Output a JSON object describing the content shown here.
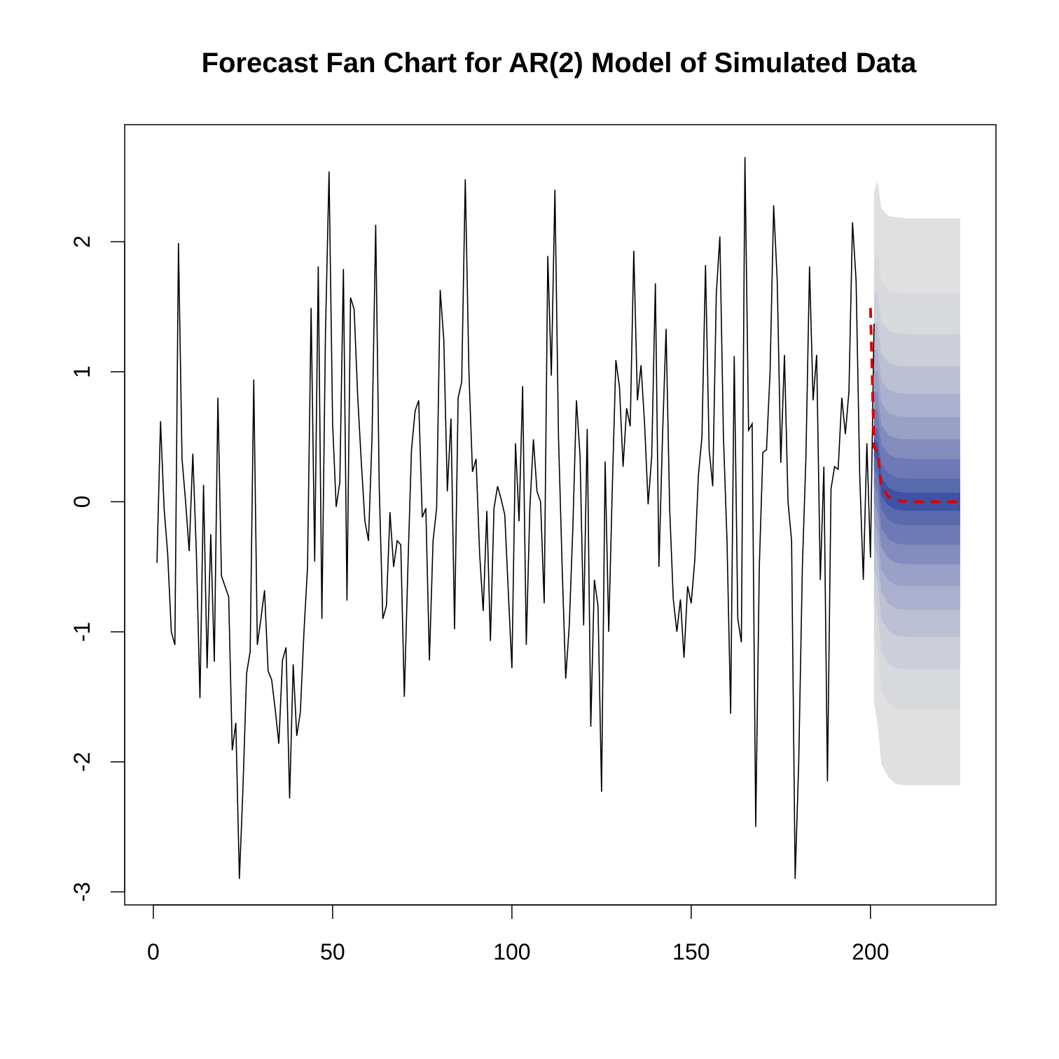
{
  "chart_data": {
    "type": "line",
    "title": "Forecast Fan Chart for AR(2) Model of Simulated Data",
    "xlabel": "",
    "ylabel": "",
    "xlim": [
      -8,
      235
    ],
    "ylim": [
      -3.1,
      2.9
    ],
    "x_ticks": [
      0,
      50,
      100,
      150,
      200
    ],
    "y_ticks": [
      -3,
      -2,
      -1,
      0,
      1,
      2
    ],
    "grid": false,
    "series": [
      {
        "role": "observed",
        "color": "#000000",
        "x_start": 1,
        "values": [
          -0.47,
          0.62,
          -0.05,
          -0.4,
          -1.0,
          -1.1,
          1.99,
          0.33,
          0.0,
          -0.38,
          0.37,
          -0.4,
          -1.51,
          0.13,
          -1.28,
          -0.25,
          -1.23,
          0.8,
          -0.57,
          -0.65,
          -0.73,
          -1.91,
          -1.7,
          -2.9,
          -2.2,
          -1.32,
          -1.15,
          0.94,
          -1.1,
          -0.9,
          -0.68,
          -1.3,
          -1.37,
          -1.6,
          -1.86,
          -1.22,
          -1.12,
          -2.28,
          -1.25,
          -1.8,
          -1.62,
          -1.0,
          -0.5,
          1.49,
          -0.46,
          1.81,
          -0.9,
          1.3,
          2.54,
          0.6,
          -0.04,
          0.15,
          1.79,
          -0.76,
          1.57,
          1.48,
          0.8,
          0.3,
          -0.15,
          -0.3,
          0.5,
          2.13,
          0.1,
          -0.9,
          -0.8,
          -0.08,
          -0.5,
          -0.3,
          -0.33,
          -1.5,
          -0.5,
          0.4,
          0.7,
          0.78,
          -0.12,
          -0.05,
          -1.22,
          -0.3,
          -0.05,
          1.63,
          1.25,
          0.08,
          0.64,
          -0.98,
          0.8,
          0.92,
          2.48,
          1.0,
          0.23,
          0.33,
          -0.4,
          -0.84,
          -0.07,
          -1.07,
          -0.05,
          0.12,
          0.02,
          -0.1,
          -0.7,
          -1.28,
          0.45,
          -0.15,
          0.89,
          -1.1,
          -0.05,
          0.48,
          0.08,
          0.0,
          -0.78,
          1.89,
          0.97,
          2.4,
          0.5,
          -0.5,
          -1.36,
          -0.95,
          -0.2,
          0.78,
          0.35,
          -0.95,
          0.56,
          -1.73,
          -0.6,
          -0.8,
          -2.23,
          0.31,
          -1.0,
          0.1,
          1.09,
          0.88,
          0.27,
          0.72,
          0.58,
          1.93,
          0.78,
          1.05,
          0.6,
          -0.02,
          0.35,
          1.68,
          -0.5,
          0.5,
          1.33,
          -0.05,
          -0.75,
          -1.0,
          -0.75,
          -1.2,
          -0.65,
          -0.78,
          -0.45,
          0.2,
          0.5,
          1.82,
          0.4,
          0.12,
          1.6,
          2.04,
          0.5,
          -0.3,
          -1.63,
          1.12,
          -0.9,
          -1.08,
          2.65,
          0.55,
          0.6,
          -2.5,
          -0.5,
          0.38,
          0.4,
          1.0,
          2.28,
          1.7,
          0.3,
          1.13,
          0.0,
          -0.3,
          -2.9,
          -2.0,
          -0.5,
          0.35,
          1.81,
          0.78,
          1.13,
          -0.6,
          0.27,
          -2.15,
          0.1,
          0.27,
          0.25,
          0.8,
          0.52,
          0.85,
          2.15,
          1.7,
          0.2,
          -0.6,
          0.45,
          -0.43,
          1.37
        ]
      },
      {
        "role": "point-forecast",
        "color": "#e00000",
        "style": "dashed",
        "x": [
          200,
          201,
          202,
          203,
          204,
          205,
          206,
          208,
          210,
          215,
          220,
          225
        ],
        "values": [
          1.49,
          0.42,
          0.38,
          0.12,
          0.08,
          0.04,
          0.02,
          0.01,
          0.0,
          0.0,
          0.0,
          0.0
        ]
      }
    ],
    "fan": {
      "x": [
        201,
        202,
        203,
        205,
        207,
        210,
        215,
        225
      ],
      "mean": [
        0.42,
        0.38,
        0.12,
        0.04,
        0.01,
        0.0,
        0.0,
        0.0
      ],
      "horizon_scale": [
        0.9,
        0.96,
        0.98,
        0.99,
        1.0,
        1.0,
        1.0,
        1.0
      ],
      "half_widths": [
        2.18,
        1.6,
        1.29,
        1.04,
        0.83,
        0.65,
        0.48,
        0.33,
        0.18,
        0.07
      ],
      "colors": [
        "#e0e0e0",
        "#d8d9dd",
        "#ccced9",
        "#bcc0d4",
        "#aab0ce",
        "#9aa1c6",
        "#838dbd",
        "#6e7ab5",
        "#5a6aaf",
        "#3e53a4"
      ]
    }
  }
}
